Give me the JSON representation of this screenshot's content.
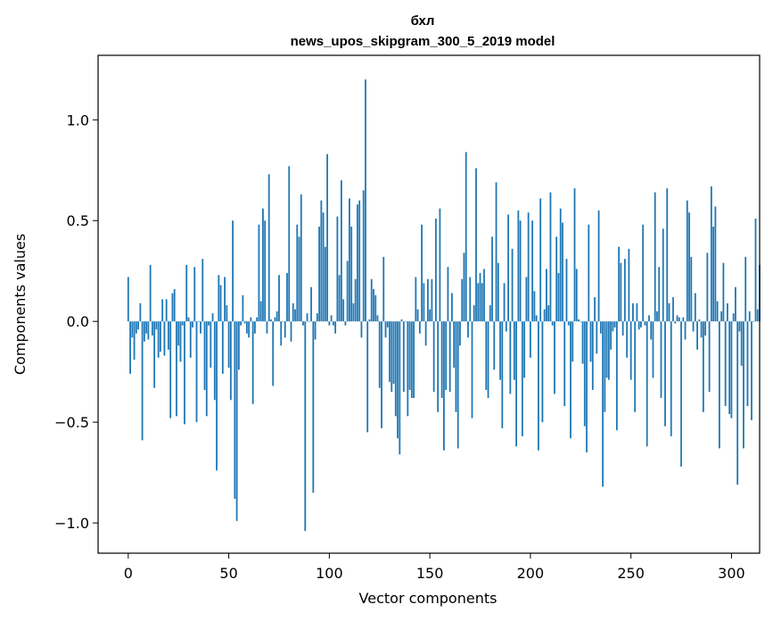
{
  "chart_data": {
    "type": "bar",
    "title": "бхл",
    "subtitle": "news_upos_skipgram_300_5_2019 model",
    "xlabel": "Vector components",
    "ylabel": "Components values",
    "xlim": [
      -15,
      314
    ],
    "ylim": [
      -1.15,
      1.32
    ],
    "xticks": [
      0,
      50,
      100,
      150,
      200,
      250,
      300
    ],
    "yticks": [
      -1.0,
      -0.5,
      0.0,
      0.5,
      1.0
    ],
    "ytick_labels": [
      "−1.0",
      "−0.5",
      "0.0",
      "0.5",
      "1.0"
    ],
    "bar_color": "#1f77b4",
    "values": [
      0.22,
      -0.26,
      -0.08,
      -0.19,
      -0.06,
      -0.04,
      0.09,
      -0.59,
      -0.1,
      -0.06,
      -0.09,
      0.28,
      -0.07,
      -0.33,
      -0.04,
      -0.18,
      -0.15,
      0.11,
      -0.17,
      0.11,
      -0.14,
      -0.48,
      0.14,
      0.16,
      -0.47,
      -0.12,
      -0.2,
      -0.02,
      -0.51,
      0.28,
      0.02,
      -0.18,
      -0.03,
      0.27,
      -0.5,
      0.0,
      -0.06,
      0.31,
      -0.34,
      -0.47,
      -0.02,
      -0.23,
      0.04,
      -0.39,
      -0.74,
      0.23,
      0.18,
      -0.26,
      0.22,
      0.08,
      -0.23,
      -0.39,
      0.5,
      -0.88,
      -0.99,
      -0.24,
      -0.02,
      0.13,
      -0.01,
      -0.06,
      -0.08,
      0.02,
      -0.41,
      -0.06,
      0.02,
      0.48,
      0.1,
      0.56,
      0.5,
      -0.06,
      0.73,
      0.01,
      -0.32,
      0.02,
      0.05,
      0.23,
      -0.12,
      0.0,
      -0.08,
      0.24,
      0.77,
      -0.1,
      0.09,
      0.06,
      0.48,
      0.42,
      0.63,
      -0.02,
      -1.04,
      0.04,
      0.0,
      0.17,
      -0.85,
      -0.09,
      0.04,
      0.47,
      0.6,
      0.54,
      0.37,
      0.83,
      -0.02,
      0.03,
      -0.02,
      -0.06,
      0.52,
      0.23,
      0.7,
      0.11,
      -0.02,
      0.3,
      0.61,
      0.47,
      0.09,
      0.21,
      0.58,
      0.6,
      -0.08,
      0.65,
      1.2,
      -0.55,
      0.01,
      0.21,
      0.16,
      0.13,
      0.03,
      -0.33,
      -0.53,
      0.32,
      -0.08,
      -0.03,
      -0.3,
      -0.35,
      -0.31,
      -0.47,
      -0.58,
      -0.66,
      0.01,
      -0.35,
      0.0,
      -0.47,
      -0.34,
      -0.38,
      -0.38,
      0.22,
      0.06,
      -0.06,
      0.48,
      0.19,
      -0.12,
      0.21,
      0.06,
      0.21,
      -0.35,
      0.51,
      -0.45,
      0.56,
      -0.38,
      -0.64,
      -0.34,
      0.27,
      -0.35,
      0.14,
      -0.23,
      -0.45,
      -0.63,
      -0.12,
      0.21,
      0.34,
      0.84,
      -0.08,
      0.22,
      -0.48,
      0.08,
      0.76,
      0.19,
      0.24,
      0.19,
      0.26,
      -0.34,
      -0.38,
      0.08,
      0.42,
      -0.24,
      0.69,
      0.29,
      -0.29,
      -0.53,
      0.19,
      -0.05,
      0.53,
      -0.36,
      0.36,
      -0.29,
      -0.62,
      0.55,
      0.5,
      -0.57,
      -0.28,
      0.22,
      0.54,
      -0.18,
      0.5,
      0.15,
      0.03,
      -0.64,
      0.61,
      -0.5,
      0.06,
      0.26,
      0.08,
      0.64,
      -0.02,
      -0.36,
      0.42,
      0.24,
      0.56,
      0.49,
      -0.42,
      0.31,
      -0.02,
      -0.58,
      -0.2,
      0.66,
      0.26,
      0.01,
      0.0,
      -0.21,
      -0.52,
      -0.65,
      0.48,
      -0.2,
      -0.34,
      0.12,
      -0.16,
      0.55,
      -0.06,
      -0.82,
      -0.45,
      -0.28,
      -0.29,
      -0.14,
      -0.05,
      -0.03,
      -0.54,
      0.37,
      0.29,
      -0.07,
      0.31,
      -0.18,
      0.36,
      -0.29,
      0.09,
      -0.45,
      0.09,
      -0.04,
      -0.03,
      0.48,
      -0.02,
      -0.62,
      0.03,
      -0.09,
      -0.28,
      0.64,
      0.05,
      0.27,
      -0.38,
      0.46,
      -0.52,
      0.66,
      0.09,
      -0.57,
      0.12,
      -0.01,
      0.03,
      0.02,
      -0.72,
      0.02,
      -0.09,
      0.6,
      0.54,
      0.32,
      -0.05,
      0.14,
      -0.14,
      0.01,
      -0.08,
      -0.45,
      -0.07,
      0.34,
      -0.35,
      0.67,
      0.47,
      0.57,
      0.1,
      -0.63,
      0.05,
      0.29,
      -0.42,
      0.09,
      -0.46,
      -0.48,
      0.04,
      0.17,
      -0.81,
      -0.05,
      -0.22,
      -0.63,
      0.32,
      -0.42,
      0.05,
      -0.49,
      0.0,
      0.51,
      0.06,
      0.28
    ]
  }
}
